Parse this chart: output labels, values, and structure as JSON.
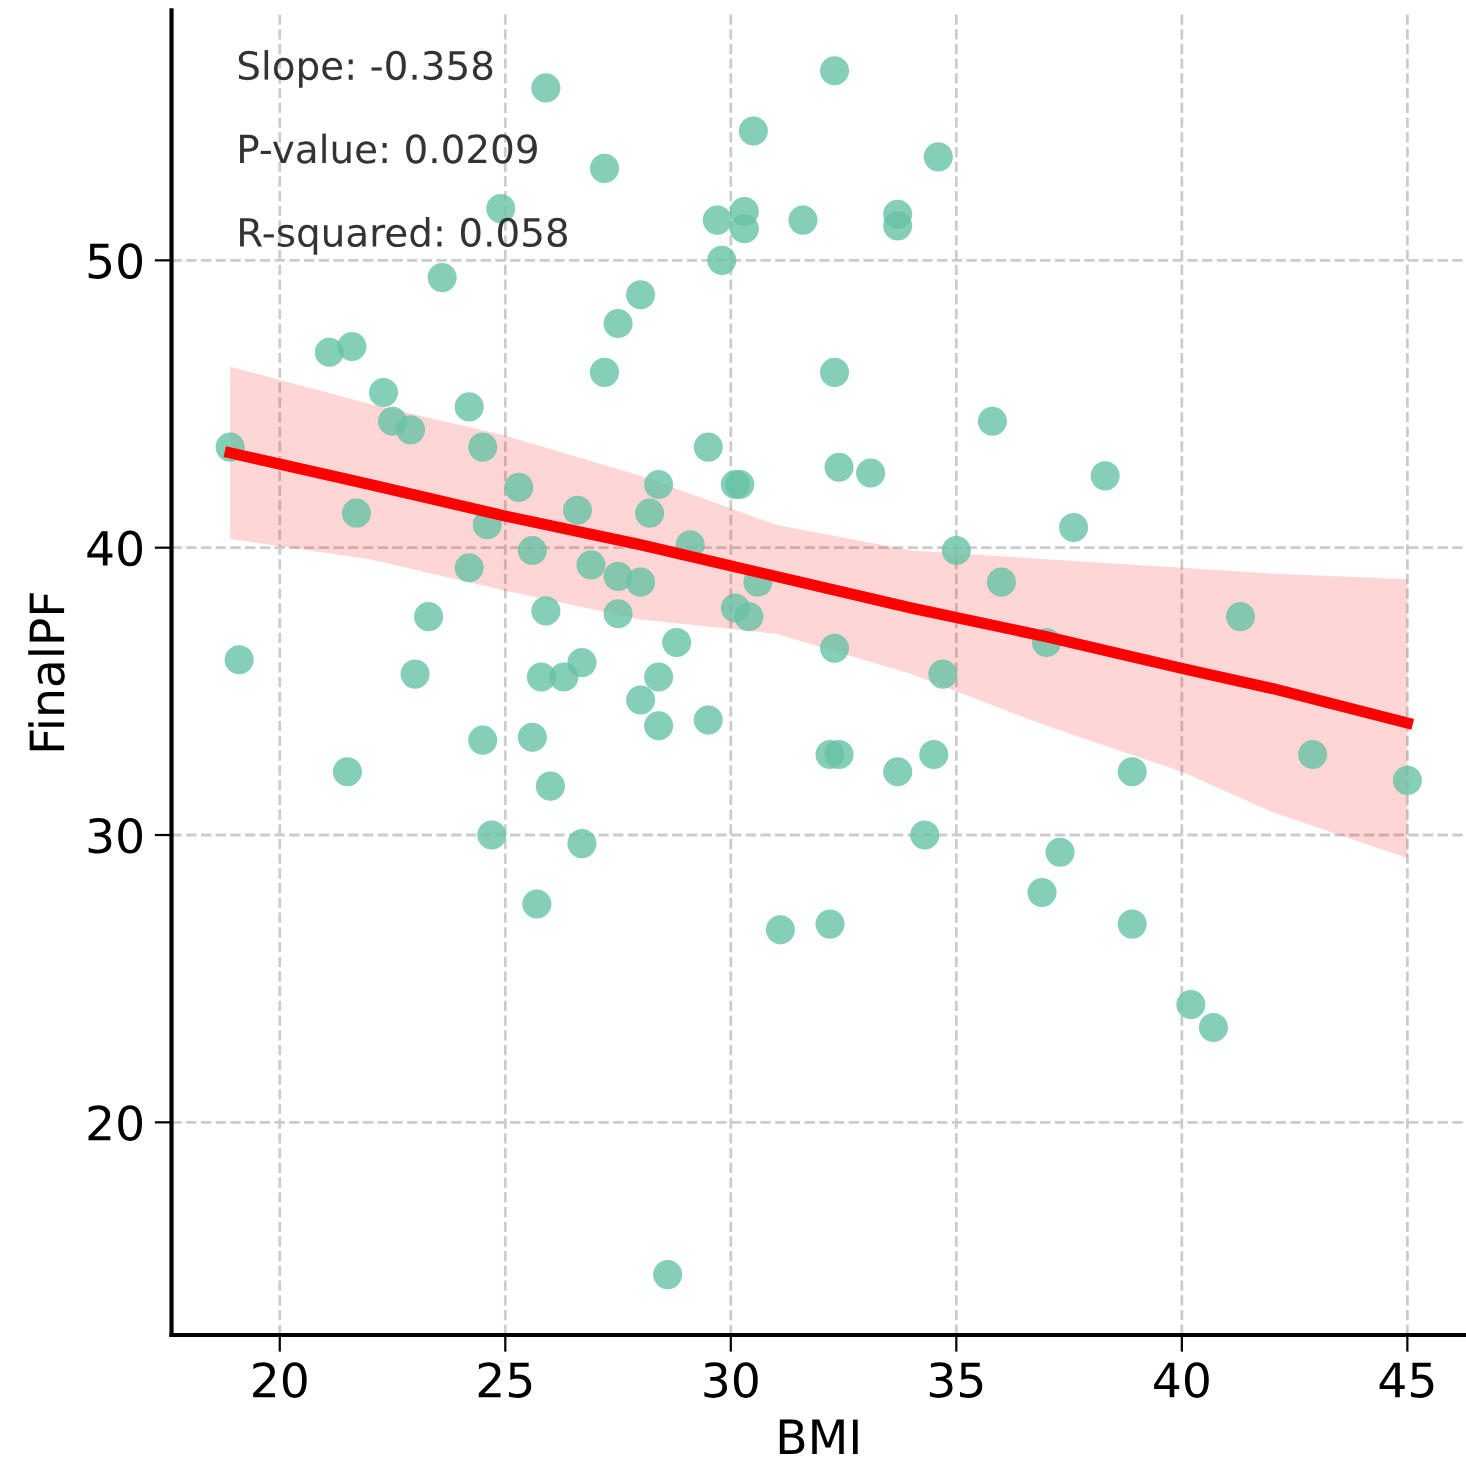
{
  "chart_data": {
    "type": "scatter",
    "xlabel": "BMI",
    "ylabel": "FinalPF",
    "annotations": [
      "Slope: -0.358",
      "P-value: 0.0209",
      "R-squared: 0.058"
    ],
    "xlim": [
      17.6,
      46.3
    ],
    "ylim": [
      12.6,
      58.7
    ],
    "xticks": [
      20,
      25,
      30,
      35,
      40,
      45
    ],
    "yticks": [
      20,
      30,
      40,
      50
    ],
    "grid": true,
    "series": [
      {
        "marker": "circle",
        "color": "#66c2a5",
        "x": [
          18.9,
          19.1,
          21.1,
          21.6,
          21.7,
          21.5,
          22.3,
          22.5,
          22.9,
          23.0,
          23.3,
          23.6,
          24.2,
          24.5,
          24.2,
          24.6,
          24.5,
          24.7,
          24.9,
          25.3,
          25.9,
          25.6,
          25.9,
          25.8,
          25.6,
          26.0,
          25.7,
          26.3,
          26.6,
          26.7,
          26.7,
          27.2,
          27.2,
          27.5,
          26.9,
          27.5,
          27.5,
          28.0,
          28.0,
          28.0,
          28.2,
          28.4,
          28.4,
          28.4,
          28.8,
          29.1,
          28.6,
          29.5,
          29.5,
          29.7,
          29.8,
          30.3,
          30.3,
          30.1,
          30.2,
          30.1,
          30.4,
          30.6,
          30.5,
          31.1,
          31.6,
          32.2,
          32.4,
          32.2,
          32.3,
          32.3,
          32.4,
          32.3,
          33.1,
          33.7,
          33.7,
          33.7,
          34.3,
          34.6,
          34.5,
          34.7,
          35.0,
          35.8,
          36.0,
          37.0,
          36.9,
          37.3,
          37.6,
          38.3,
          38.9,
          38.9,
          40.2,
          40.7,
          41.3,
          42.9,
          45.0
        ],
        "values": [
          43.5,
          36.1,
          46.8,
          47.0,
          41.2,
          32.2,
          45.4,
          44.4,
          44.1,
          35.6,
          37.6,
          49.4,
          44.9,
          43.5,
          39.3,
          40.8,
          33.3,
          30.0,
          51.8,
          42.1,
          56.0,
          39.9,
          37.8,
          35.5,
          33.4,
          31.7,
          27.6,
          35.5,
          41.3,
          36.0,
          29.7,
          53.2,
          46.1,
          47.8,
          39.4,
          39.0,
          37.7,
          48.8,
          38.8,
          34.7,
          41.2,
          42.2,
          35.5,
          33.8,
          36.7,
          40.1,
          14.7,
          43.5,
          34.0,
          51.4,
          50.0,
          51.7,
          51.1,
          42.2,
          42.2,
          37.9,
          37.6,
          38.8,
          54.5,
          26.7,
          51.4,
          32.8,
          32.8,
          26.9,
          56.6,
          46.1,
          42.8,
          36.5,
          42.6,
          51.6,
          51.2,
          32.2,
          30.0,
          53.6,
          32.8,
          35.6,
          39.9,
          44.4,
          38.8,
          36.7,
          28.0,
          29.4,
          40.7,
          42.5,
          32.2,
          26.9,
          24.1,
          23.3,
          37.6,
          32.8,
          31.9
        ]
      },
      {
        "type": "line",
        "color": "#ff0000",
        "x": [
          18.9,
          22,
          25,
          28,
          31,
          34,
          37,
          40,
          42,
          45
        ],
        "values": [
          43.3,
          42.2,
          41.1,
          40.1,
          39.0,
          37.9,
          36.9,
          35.8,
          35.1,
          33.9
        ],
        "upper": [
          46.3,
          45.0,
          43.9,
          42.5,
          40.8,
          39.9,
          39.6,
          39.3,
          39.1,
          38.9
        ],
        "lower": [
          40.3,
          39.6,
          38.5,
          37.5,
          37.0,
          35.6,
          33.8,
          32.2,
          30.8,
          29.2
        ]
      }
    ]
  }
}
